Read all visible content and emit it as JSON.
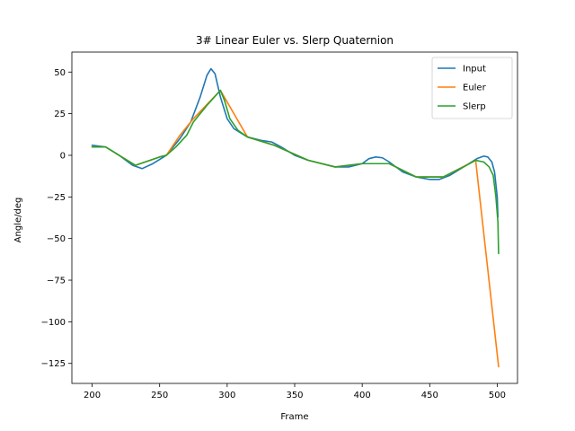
{
  "chart_data": {
    "type": "line",
    "title": "3# Linear Euler vs. Slerp Quaternion",
    "xlabel": "Frame",
    "ylabel": "Angle/deg",
    "xlim": [
      185,
      515
    ],
    "ylim": [
      -137,
      62
    ],
    "xticks": [
      200,
      250,
      300,
      350,
      400,
      450,
      500
    ],
    "yticks": [
      50,
      25,
      0,
      -25,
      -50,
      -75,
      -100,
      -125
    ],
    "grid": false,
    "legend_position": "top-right",
    "series": [
      {
        "name": "Input",
        "color": "#1f77b4",
        "points": [
          [
            200,
            6
          ],
          [
            210,
            5
          ],
          [
            220,
            0
          ],
          [
            230,
            -6
          ],
          [
            237,
            -8
          ],
          [
            245,
            -5
          ],
          [
            255,
            0
          ],
          [
            265,
            10
          ],
          [
            273,
            20
          ],
          [
            280,
            35
          ],
          [
            285,
            48
          ],
          [
            288,
            52
          ],
          [
            291,
            49
          ],
          [
            295,
            35
          ],
          [
            300,
            22
          ],
          [
            305,
            16
          ],
          [
            315,
            11
          ],
          [
            325,
            9
          ],
          [
            333,
            8
          ],
          [
            340,
            5
          ],
          [
            350,
            0
          ],
          [
            360,
            -3
          ],
          [
            370,
            -5
          ],
          [
            380,
            -7
          ],
          [
            390,
            -7
          ],
          [
            400,
            -5
          ],
          [
            405,
            -2
          ],
          [
            410,
            -1
          ],
          [
            415,
            -1.5
          ],
          [
            420,
            -4
          ],
          [
            430,
            -10
          ],
          [
            440,
            -13
          ],
          [
            450,
            -14.5
          ],
          [
            457,
            -14.5
          ],
          [
            465,
            -12
          ],
          [
            475,
            -7
          ],
          [
            485,
            -2
          ],
          [
            490,
            -0.5
          ],
          [
            493,
            -1
          ],
          [
            496,
            -4
          ],
          [
            498,
            -10
          ],
          [
            500,
            -25
          ],
          [
            500.5,
            -37
          ]
        ]
      },
      {
        "name": "Euler",
        "color": "#ff7f0e",
        "points": [
          [
            200,
            5
          ],
          [
            210,
            5
          ],
          [
            232,
            -6
          ],
          [
            250,
            -1
          ],
          [
            255,
            0
          ],
          [
            265,
            12
          ],
          [
            275,
            22
          ],
          [
            295,
            39
          ],
          [
            315,
            11
          ],
          [
            335,
            6
          ],
          [
            360,
            -3
          ],
          [
            380,
            -7
          ],
          [
            400,
            -5
          ],
          [
            420,
            -5
          ],
          [
            440,
            -13
          ],
          [
            460,
            -13
          ],
          [
            484,
            -3
          ],
          [
            501,
            -127
          ]
        ]
      },
      {
        "name": "Slerp",
        "color": "#2ca02c",
        "points": [
          [
            200,
            5
          ],
          [
            210,
            5
          ],
          [
            232,
            -6
          ],
          [
            250,
            -1
          ],
          [
            255,
            0
          ],
          [
            262,
            5
          ],
          [
            270,
            12
          ],
          [
            275,
            20
          ],
          [
            285,
            30
          ],
          [
            295,
            39
          ],
          [
            298,
            33
          ],
          [
            302,
            22
          ],
          [
            308,
            15
          ],
          [
            315,
            11
          ],
          [
            335,
            6
          ],
          [
            360,
            -3
          ],
          [
            380,
            -7
          ],
          [
            400,
            -5
          ],
          [
            420,
            -5
          ],
          [
            440,
            -13
          ],
          [
            460,
            -13
          ],
          [
            475,
            -7
          ],
          [
            484,
            -3
          ],
          [
            490,
            -4
          ],
          [
            494,
            -7
          ],
          [
            497,
            -12
          ],
          [
            499,
            -25
          ],
          [
            500.5,
            -40
          ],
          [
            501,
            -59
          ]
        ]
      }
    ]
  }
}
